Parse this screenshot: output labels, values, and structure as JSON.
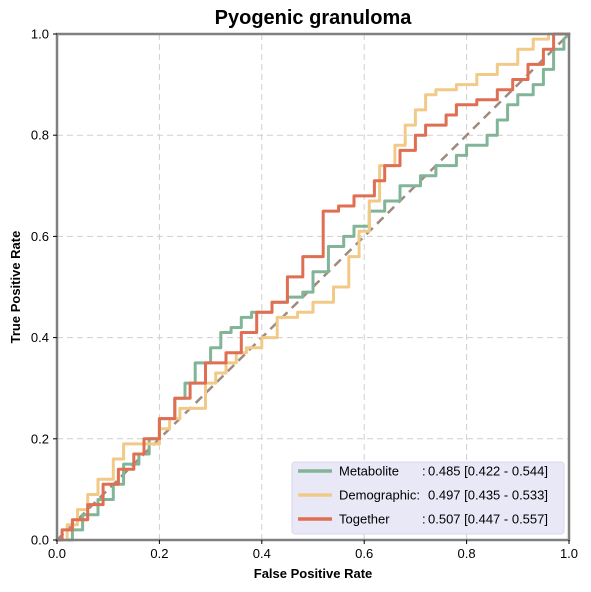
{
  "chart_data": {
    "type": "line",
    "title": "Pyogenic granuloma",
    "xlabel": "False Positive Rate",
    "ylabel": "True Positive Rate",
    "xlim": [
      0,
      1
    ],
    "ylim": [
      0,
      1
    ],
    "xticks": [
      "0.0",
      "0.2",
      "0.4",
      "0.6",
      "0.8",
      "1.0"
    ],
    "yticks": [
      "0.0",
      "0.2",
      "0.4",
      "0.6",
      "0.8",
      "1.0"
    ],
    "grid": true,
    "legend_position": "bottom-right",
    "reference_line": {
      "x": [
        0,
        1
      ],
      "y": [
        0,
        1
      ],
      "color": "#a08a80",
      "style": "dashed"
    },
    "series": [
      {
        "name": "Metabolite",
        "legend_label": "Metabolite",
        "legend_sep": ":",
        "legend_value": "0.485 [0.422 - 0.544]",
        "color": "#82b597",
        "x": [
          0,
          0.03,
          0.03,
          0.05,
          0.05,
          0.08,
          0.08,
          0.11,
          0.11,
          0.13,
          0.13,
          0.16,
          0.16,
          0.18,
          0.18,
          0.2,
          0.2,
          0.23,
          0.23,
          0.25,
          0.25,
          0.27,
          0.27,
          0.3,
          0.3,
          0.32,
          0.32,
          0.34,
          0.34,
          0.36,
          0.36,
          0.38,
          0.38,
          0.42,
          0.42,
          0.45,
          0.45,
          0.48,
          0.48,
          0.5,
          0.5,
          0.53,
          0.53,
          0.56,
          0.56,
          0.58,
          0.58,
          0.61,
          0.61,
          0.64,
          0.64,
          0.67,
          0.67,
          0.71,
          0.71,
          0.74,
          0.74,
          0.78,
          0.78,
          0.8,
          0.8,
          0.84,
          0.84,
          0.86,
          0.86,
          0.88,
          0.88,
          0.9,
          0.9,
          0.93,
          0.93,
          0.95,
          0.95,
          0.97,
          0.97,
          0.99,
          0.99,
          1.0
        ],
        "y": [
          0,
          0,
          0.02,
          0.02,
          0.05,
          0.05,
          0.08,
          0.08,
          0.11,
          0.11,
          0.15,
          0.15,
          0.17,
          0.17,
          0.2,
          0.2,
          0.24,
          0.24,
          0.28,
          0.28,
          0.31,
          0.31,
          0.35,
          0.35,
          0.38,
          0.38,
          0.41,
          0.41,
          0.42,
          0.42,
          0.44,
          0.44,
          0.45,
          0.45,
          0.47,
          0.47,
          0.48,
          0.48,
          0.49,
          0.49,
          0.53,
          0.53,
          0.58,
          0.58,
          0.6,
          0.6,
          0.62,
          0.62,
          0.65,
          0.65,
          0.67,
          0.67,
          0.7,
          0.7,
          0.72,
          0.72,
          0.74,
          0.74,
          0.76,
          0.76,
          0.78,
          0.78,
          0.8,
          0.8,
          0.83,
          0.83,
          0.86,
          0.86,
          0.88,
          0.88,
          0.9,
          0.9,
          0.93,
          0.93,
          0.97,
          0.97,
          0.99,
          1.0
        ]
      },
      {
        "name": "Demographic",
        "legend_label": "Demographic:",
        "legend_sep": "",
        "legend_value": "0.497 [0.435 - 0.533]",
        "color": "#f2ca88",
        "x": [
          0,
          0.02,
          0.02,
          0.04,
          0.04,
          0.06,
          0.06,
          0.08,
          0.08,
          0.11,
          0.11,
          0.13,
          0.13,
          0.2,
          0.2,
          0.22,
          0.22,
          0.24,
          0.24,
          0.29,
          0.29,
          0.31,
          0.31,
          0.33,
          0.33,
          0.35,
          0.35,
          0.37,
          0.37,
          0.4,
          0.4,
          0.43,
          0.43,
          0.47,
          0.47,
          0.5,
          0.5,
          0.54,
          0.54,
          0.57,
          0.57,
          0.59,
          0.59,
          0.61,
          0.61,
          0.63,
          0.63,
          0.66,
          0.66,
          0.68,
          0.68,
          0.7,
          0.7,
          0.72,
          0.72,
          0.74,
          0.74,
          0.78,
          0.78,
          0.82,
          0.82,
          0.86,
          0.86,
          0.9,
          0.9,
          0.93,
          0.93,
          0.96,
          0.96,
          0.99,
          0.99,
          1.0
        ],
        "y": [
          0,
          0,
          0.03,
          0.03,
          0.06,
          0.06,
          0.09,
          0.09,
          0.12,
          0.12,
          0.16,
          0.16,
          0.19,
          0.19,
          0.22,
          0.22,
          0.24,
          0.24,
          0.26,
          0.26,
          0.31,
          0.31,
          0.33,
          0.33,
          0.35,
          0.35,
          0.37,
          0.37,
          0.38,
          0.38,
          0.4,
          0.4,
          0.44,
          0.44,
          0.45,
          0.45,
          0.47,
          0.47,
          0.5,
          0.5,
          0.56,
          0.56,
          0.61,
          0.61,
          0.67,
          0.67,
          0.74,
          0.74,
          0.78,
          0.78,
          0.82,
          0.82,
          0.85,
          0.85,
          0.88,
          0.88,
          0.89,
          0.89,
          0.9,
          0.9,
          0.92,
          0.92,
          0.94,
          0.94,
          0.97,
          0.97,
          0.99,
          0.99,
          1.0,
          1.0,
          1.0,
          1.0
        ]
      },
      {
        "name": "Together",
        "legend_label": "Together",
        "legend_sep": ":",
        "legend_value": "0.507 [0.447 - 0.557]",
        "color": "#e06e52",
        "x": [
          0,
          0.01,
          0.01,
          0.03,
          0.03,
          0.06,
          0.06,
          0.09,
          0.09,
          0.12,
          0.12,
          0.15,
          0.15,
          0.17,
          0.17,
          0.2,
          0.2,
          0.23,
          0.23,
          0.26,
          0.26,
          0.29,
          0.29,
          0.33,
          0.33,
          0.36,
          0.36,
          0.39,
          0.39,
          0.42,
          0.42,
          0.45,
          0.45,
          0.48,
          0.48,
          0.52,
          0.52,
          0.55,
          0.55,
          0.58,
          0.58,
          0.62,
          0.62,
          0.64,
          0.64,
          0.67,
          0.67,
          0.7,
          0.7,
          0.72,
          0.72,
          0.76,
          0.76,
          0.78,
          0.78,
          0.82,
          0.82,
          0.86,
          0.86,
          0.89,
          0.89,
          0.92,
          0.92,
          0.95,
          0.95,
          0.97,
          0.97,
          1.0
        ],
        "y": [
          0,
          0,
          0.02,
          0.02,
          0.04,
          0.04,
          0.07,
          0.07,
          0.11,
          0.11,
          0.14,
          0.14,
          0.17,
          0.17,
          0.2,
          0.2,
          0.24,
          0.24,
          0.28,
          0.28,
          0.31,
          0.31,
          0.35,
          0.35,
          0.37,
          0.37,
          0.41,
          0.41,
          0.45,
          0.45,
          0.47,
          0.47,
          0.52,
          0.52,
          0.56,
          0.56,
          0.65,
          0.65,
          0.66,
          0.66,
          0.68,
          0.68,
          0.71,
          0.71,
          0.74,
          0.74,
          0.77,
          0.77,
          0.8,
          0.8,
          0.82,
          0.82,
          0.84,
          0.84,
          0.86,
          0.86,
          0.87,
          0.87,
          0.89,
          0.89,
          0.91,
          0.91,
          0.94,
          0.94,
          0.97,
          0.97,
          1.0,
          1.0
        ]
      }
    ]
  }
}
